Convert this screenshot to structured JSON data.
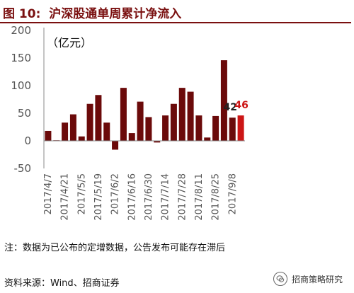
{
  "header": {
    "figure_label": "图 10:",
    "title": "沪深股通单周累计净流入"
  },
  "note": "注：数据为已公布的定增数据，公告发布可能存在滞后",
  "source": "资料来源：Wind、招商证券",
  "watermark": {
    "text": "招商策略研究",
    "icon": "wechat-logo-icon"
  },
  "colors": {
    "bar": "#6b0a0a",
    "highlight_bar": "#cc1515",
    "title": "#7a1010",
    "axis_text": "#555555"
  },
  "chart_data": {
    "type": "bar",
    "unit_label": "（亿元）",
    "ylim": [
      -50,
      200
    ],
    "yticks": [
      "200",
      "150",
      "100",
      "50",
      "0",
      "-50"
    ],
    "grid": false,
    "tick_labels": [
      "2017/4/7",
      "2017/4/21",
      "2017/5/5",
      "2017/5/19",
      "2017/6/2",
      "2017/6/16",
      "2017/6/30",
      "2017/7/14",
      "2017/7/28",
      "2017/8/11",
      "2017/8/25",
      "2017/9/8"
    ],
    "values": [
      18,
      1,
      33,
      48,
      8,
      67,
      83,
      33,
      -16,
      96,
      14,
      71,
      43,
      -3,
      46,
      67,
      96,
      89,
      46,
      6,
      45,
      146,
      42,
      46
    ],
    "annotations": [
      {
        "index": 22,
        "text": "42"
      },
      {
        "index": 23,
        "text": "46"
      }
    ]
  }
}
